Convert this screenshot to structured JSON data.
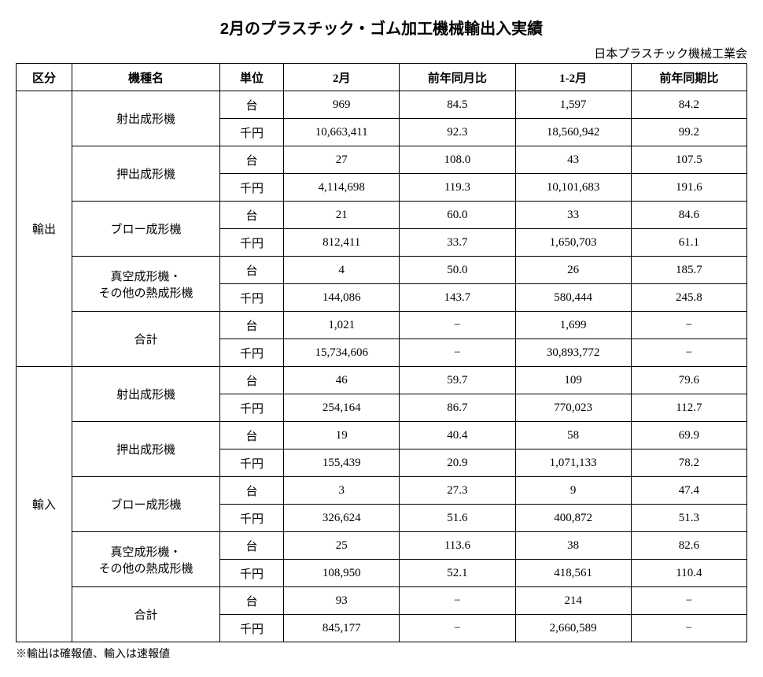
{
  "title": "2月のプラスチック・ゴム加工機械輸出入実績",
  "source": "日本プラスチック機械工業会",
  "footnote": "※輸出は確報値、輸入は速報値",
  "headers": {
    "category": "区分",
    "type": "機種名",
    "unit": "単位",
    "feb": "2月",
    "yoy": "前年同月比",
    "cum": "1-2月",
    "cumyoy": "前年同期比"
  },
  "categories": {
    "export": "輸出",
    "import": "輸入"
  },
  "types": {
    "injection": "射出成形機",
    "extrusion": "押出成形機",
    "blow": "ブロー成形機",
    "vacuum1": "真空成形機・",
    "vacuum2": "その他の熱成形機",
    "total": "合計"
  },
  "units": {
    "count": "台",
    "yen": "千円"
  },
  "export": {
    "injection": {
      "count": {
        "feb": "969",
        "yoy": "84.5",
        "cum": "1,597",
        "cumyoy": "84.2"
      },
      "yen": {
        "feb": "10,663,411",
        "yoy": "92.3",
        "cum": "18,560,942",
        "cumyoy": "99.2"
      }
    },
    "extrusion": {
      "count": {
        "feb": "27",
        "yoy": "108.0",
        "cum": "43",
        "cumyoy": "107.5"
      },
      "yen": {
        "feb": "4,114,698",
        "yoy": "119.3",
        "cum": "10,101,683",
        "cumyoy": "191.6"
      }
    },
    "blow": {
      "count": {
        "feb": "21",
        "yoy": "60.0",
        "cum": "33",
        "cumyoy": "84.6"
      },
      "yen": {
        "feb": "812,411",
        "yoy": "33.7",
        "cum": "1,650,703",
        "cumyoy": "61.1"
      }
    },
    "vacuum": {
      "count": {
        "feb": "4",
        "yoy": "50.0",
        "cum": "26",
        "cumyoy": "185.7"
      },
      "yen": {
        "feb": "144,086",
        "yoy": "143.7",
        "cum": "580,444",
        "cumyoy": "245.8"
      }
    },
    "total": {
      "count": {
        "feb": "1,021",
        "yoy": "−",
        "cum": "1,699",
        "cumyoy": "−"
      },
      "yen": {
        "feb": "15,734,606",
        "yoy": "−",
        "cum": "30,893,772",
        "cumyoy": "−"
      }
    }
  },
  "import": {
    "injection": {
      "count": {
        "feb": "46",
        "yoy": "59.7",
        "cum": "109",
        "cumyoy": "79.6"
      },
      "yen": {
        "feb": "254,164",
        "yoy": "86.7",
        "cum": "770,023",
        "cumyoy": "112.7"
      }
    },
    "extrusion": {
      "count": {
        "feb": "19",
        "yoy": "40.4",
        "cum": "58",
        "cumyoy": "69.9"
      },
      "yen": {
        "feb": "155,439",
        "yoy": "20.9",
        "cum": "1,071,133",
        "cumyoy": "78.2"
      }
    },
    "blow": {
      "count": {
        "feb": "3",
        "yoy": "27.3",
        "cum": "9",
        "cumyoy": "47.4"
      },
      "yen": {
        "feb": "326,624",
        "yoy": "51.6",
        "cum": "400,872",
        "cumyoy": "51.3"
      }
    },
    "vacuum": {
      "count": {
        "feb": "25",
        "yoy": "113.6",
        "cum": "38",
        "cumyoy": "82.6"
      },
      "yen": {
        "feb": "108,950",
        "yoy": "52.1",
        "cum": "418,561",
        "cumyoy": "110.4"
      }
    },
    "total": {
      "count": {
        "feb": "93",
        "yoy": "−",
        "cum": "214",
        "cumyoy": "−"
      },
      "yen": {
        "feb": "845,177",
        "yoy": "−",
        "cum": "2,660,589",
        "cumyoy": "−"
      }
    }
  }
}
